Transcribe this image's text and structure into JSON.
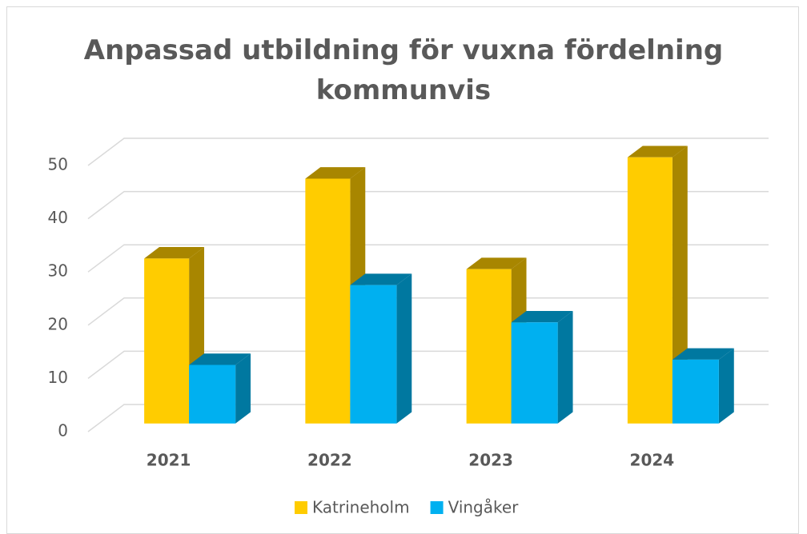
{
  "chart_data": {
    "type": "bar3d",
    "title": "Anpassad utbildning för vuxna fördelning kommunvis",
    "categories": [
      "2021",
      "2022",
      "2023",
      "2024"
    ],
    "series": [
      {
        "name": "Katrineholm",
        "color": "#FFCC00",
        "side_color": "#A88600",
        "values": [
          31,
          46,
          29,
          50
        ]
      },
      {
        "name": "Vingåker",
        "color": "#00B0F0",
        "side_color": "#0078A0",
        "values": [
          11,
          26,
          19,
          12
        ]
      }
    ],
    "ylim": [
      0,
      50
    ],
    "yticks": [
      0,
      10,
      20,
      30,
      40,
      50
    ],
    "grid": true,
    "legend": "bottom"
  }
}
